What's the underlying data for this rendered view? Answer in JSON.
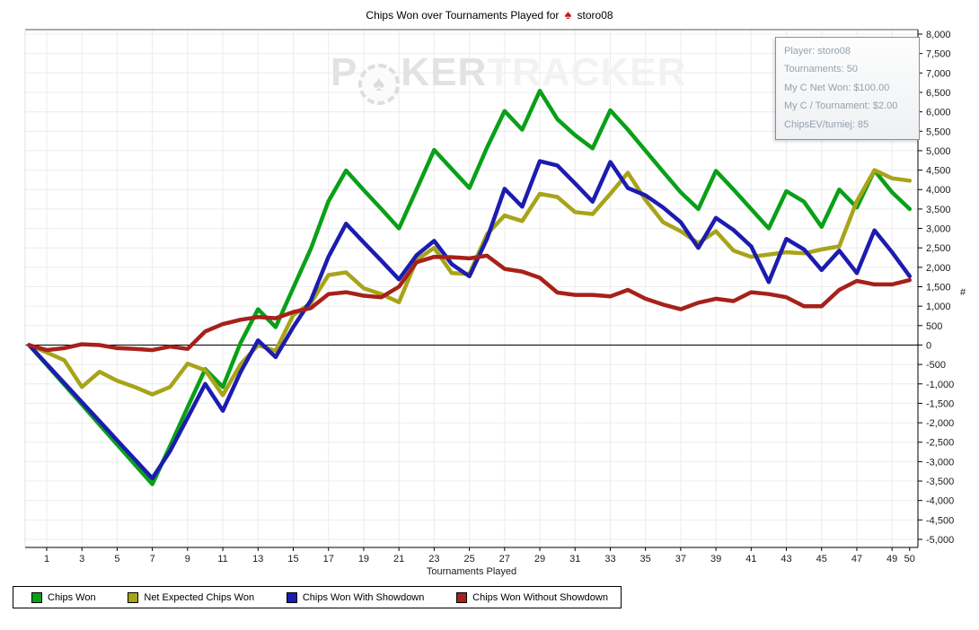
{
  "title": {
    "text": "Chips Won over Tournaments Played for",
    "player": "storo08",
    "site_icon": "pokerstars-spade"
  },
  "watermark": {
    "part1": "P",
    "chip_icon": "poker-chip-spade",
    "part2": "KER",
    "part3": "TRACKER"
  },
  "tooltip": {
    "lines": [
      "Player: storo08",
      "Tournaments: 50",
      "My C Net Won: $100.00",
      "My C / Tournament: $2.00",
      "ChipsEV/turniej: 85"
    ]
  },
  "chart_data": {
    "type": "line",
    "title": "Chips Won over Tournaments Played for storo08",
    "xlabel": "Tournaments Played",
    "ylabel": "#",
    "x_start": 0,
    "x_end": 50,
    "ylim": [
      -5000,
      8000
    ],
    "ytick_step": 500,
    "xticks": [
      1,
      3,
      5,
      7,
      9,
      11,
      13,
      15,
      17,
      19,
      21,
      23,
      25,
      27,
      29,
      31,
      33,
      35,
      37,
      39,
      41,
      43,
      45,
      47,
      49,
      50
    ],
    "grid": true,
    "legend_position": "bottom",
    "axis_colors": {
      "grid": "#ececec",
      "zero_line": "#000000",
      "tick_text": "#1a1a1a"
    },
    "series": [
      {
        "name": "Chips Won",
        "color": "#09a018",
        "values": [
          0,
          -510,
          -1020,
          -1530,
          -2050,
          -2560,
          -3070,
          -3580,
          -2600,
          -1600,
          -620,
          -1080,
          50,
          920,
          460,
          1470,
          2480,
          3700,
          4490,
          3990,
          3500,
          3000,
          4000,
          5020,
          4530,
          4040,
          5080,
          6020,
          5540,
          6540,
          5810,
          5400,
          5060,
          6040,
          5540,
          5000,
          4460,
          3930,
          3500,
          4480,
          4000,
          3500,
          3000,
          3960,
          3690,
          3040,
          4000,
          3540,
          4490,
          3930,
          3500
        ]
      },
      {
        "name": "Net Expected Chips Won",
        "color": "#a8a41a",
        "values": [
          0,
          -190,
          -390,
          -1080,
          -690,
          -920,
          -1080,
          -1270,
          -1080,
          -480,
          -650,
          -1290,
          -500,
          0,
          -150,
          770,
          1080,
          1800,
          1870,
          1460,
          1310,
          1100,
          2190,
          2500,
          1850,
          1830,
          2850,
          3330,
          3190,
          3890,
          3810,
          3420,
          3370,
          3890,
          4430,
          3730,
          3160,
          2930,
          2620,
          2930,
          2430,
          2270,
          2330,
          2390,
          2360,
          2460,
          2540,
          3700,
          4500,
          4290,
          4230
        ]
      },
      {
        "name": "Chips Won With Showdown",
        "color": "#1c1caf",
        "values": [
          0,
          -490,
          -980,
          -1470,
          -1960,
          -2450,
          -2940,
          -3430,
          -2730,
          -1870,
          -1000,
          -1690,
          -700,
          120,
          -310,
          460,
          1150,
          2270,
          3120,
          2640,
          2170,
          1690,
          2310,
          2680,
          2080,
          1770,
          2730,
          4020,
          3560,
          4730,
          4620,
          4160,
          3690,
          4710,
          4040,
          3850,
          3540,
          3160,
          2500,
          3270,
          2960,
          2540,
          1620,
          2730,
          2460,
          1930,
          2430,
          1850,
          2950,
          2390,
          1770
        ]
      },
      {
        "name": "Chips Won Without Showdown",
        "color": "#a6211a",
        "values": [
          0,
          -130,
          -80,
          20,
          0,
          -80,
          -100,
          -130,
          -40,
          -100,
          350,
          540,
          650,
          720,
          690,
          850,
          950,
          1310,
          1360,
          1270,
          1230,
          1500,
          2130,
          2270,
          2260,
          2230,
          2300,
          1960,
          1890,
          1730,
          1350,
          1290,
          1290,
          1250,
          1420,
          1190,
          1040,
          920,
          1090,
          1190,
          1130,
          1360,
          1310,
          1230,
          1000,
          1000,
          1420,
          1650,
          1560,
          1560,
          1670
        ]
      }
    ]
  }
}
